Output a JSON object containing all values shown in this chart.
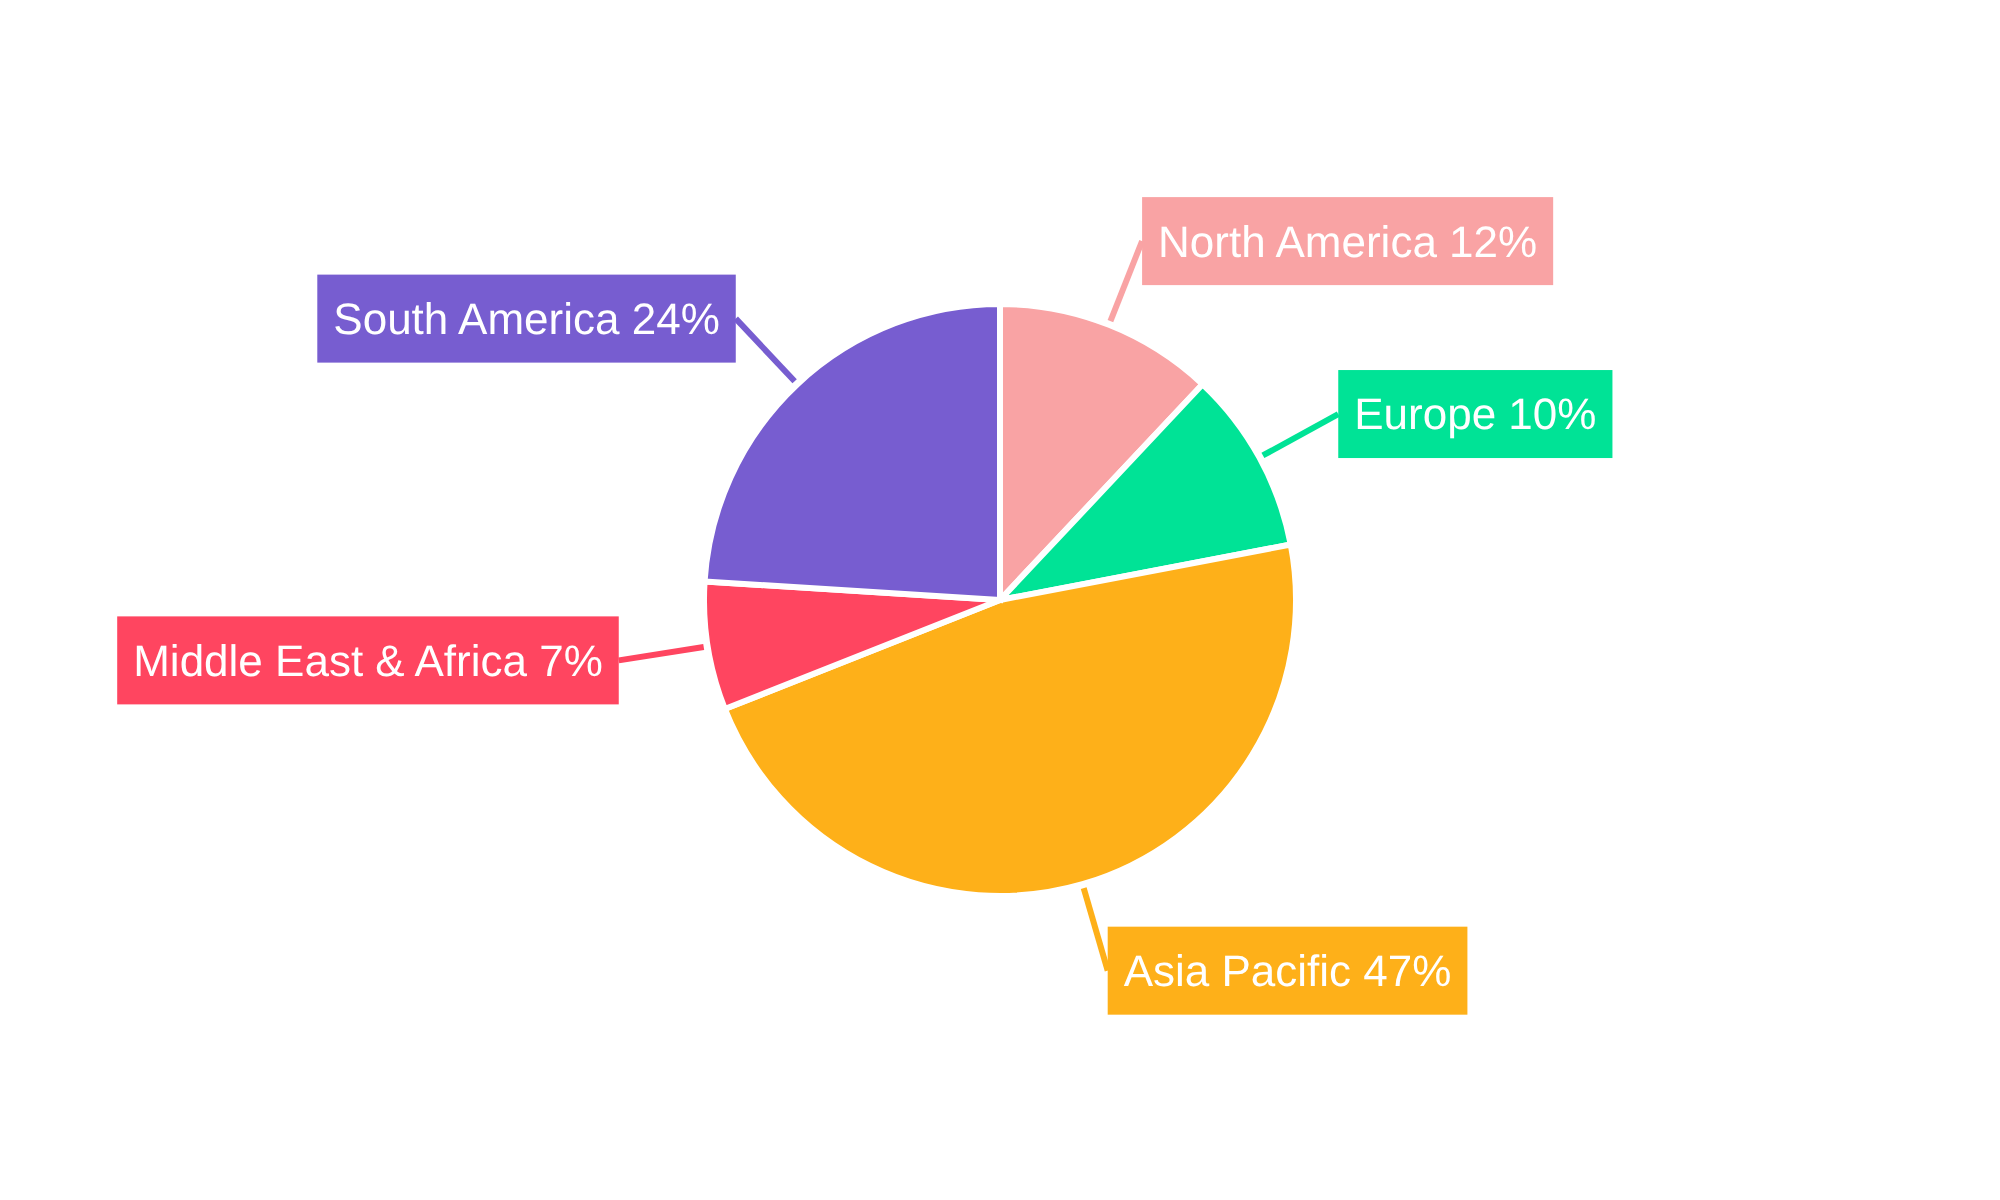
{
  "chart_data": {
    "type": "pie",
    "categories": [
      "North America",
      "Europe",
      "Asia Pacific",
      "Middle East & Africa",
      "South America"
    ],
    "values": [
      12,
      10,
      47,
      7,
      24
    ],
    "colors": [
      "#f9a3a4",
      "#00e396",
      "#feb019",
      "#ff4560",
      "#775dd0"
    ],
    "value_labels": [
      "12%",
      "10%",
      "47%",
      "7%",
      "24%"
    ],
    "legend": false
  }
}
